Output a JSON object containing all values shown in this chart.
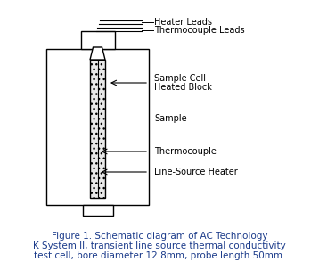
{
  "background_color": "#ffffff",
  "caption_color": "#1a3a8a",
  "caption_lines": [
    "Figure 1. Schematic diagram of AC Technology",
    "K System II, transient line source thermal conductivity",
    "test cell, bore diameter 12.8mm, probe length 50mm."
  ],
  "caption_fontsize": 7.5,
  "label_fontsize": 7.0,
  "labels": {
    "heater_leads": "Heater Leads",
    "thermocouple_leads": "Thermocouple Leads",
    "sample_cell_line1": "Sample Cell",
    "sample_cell_line2": "Heated Block",
    "sample": "Sample",
    "thermocouple": "Thermocouple",
    "line_source_heater": "Line-Source Heater"
  },
  "line_color": "#000000"
}
